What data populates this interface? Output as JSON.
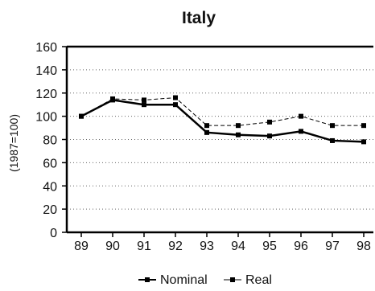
{
  "chart_data": {
    "type": "line",
    "title": "Italy",
    "xlabel": "",
    "ylabel": "(1987=100)",
    "x": [
      "89",
      "90",
      "91",
      "92",
      "93",
      "94",
      "95",
      "96",
      "97",
      "98"
    ],
    "ylim": [
      0,
      160
    ],
    "yticks": [
      0,
      20,
      40,
      60,
      80,
      100,
      120,
      140,
      160
    ],
    "grid": "horizontal dotted",
    "legend_position": "bottom",
    "series": [
      {
        "name": "Nominal",
        "values": [
          100,
          114,
          110,
          110,
          86,
          84,
          83,
          87,
          79,
          78
        ],
        "color": "#000000",
        "line_style": "solid",
        "marker": "square"
      },
      {
        "name": "Real",
        "values": [
          100,
          115,
          114,
          116,
          92,
          92,
          95,
          100,
          92,
          92
        ],
        "color": "#000000",
        "line_style": "dashed",
        "marker": "square"
      }
    ]
  }
}
